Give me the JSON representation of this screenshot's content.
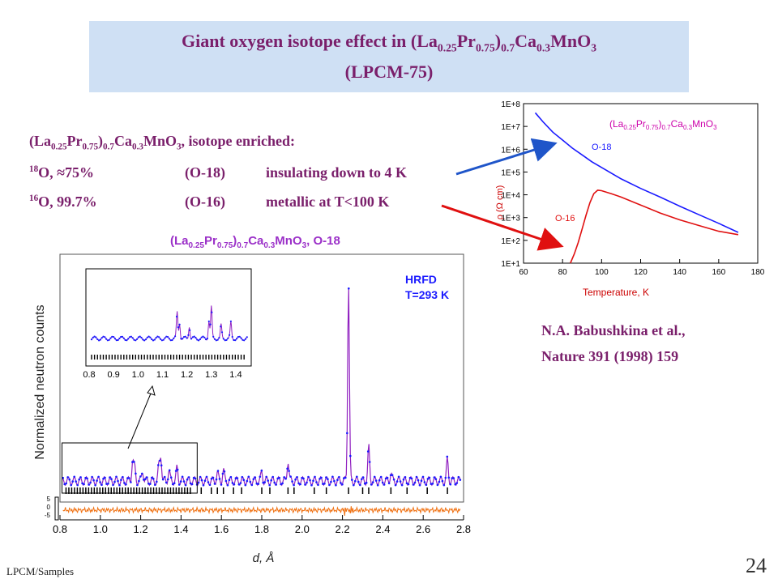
{
  "title": {
    "line1_prefix": "Giant oxygen isotope effect in (La",
    "line1_s1": "0.25",
    "line1_m1": "Pr",
    "line1_s2": "0.75",
    "line1_m2": ")",
    "line1_s3": "0.7",
    "line1_m3": "Ca",
    "line1_s4": "0.3",
    "line1_m4": "MnO",
    "line1_s5": "3",
    "line2": "(LPCM-75)"
  },
  "compound": {
    "p0": "(La",
    "s1": "0.25",
    "p1": "Pr",
    "s2": "0.75",
    "p2": ")",
    "s3": "0.7",
    "p3": "Ca",
    "s4": "0.3",
    "p4": "MnO",
    "s5": "3",
    "p5": ", isotope enriched:"
  },
  "isotopes": [
    {
      "mass": "18",
      "label": "O,  ≈75%",
      "code": "(O-18)",
      "state": "insulating down to 4 K"
    },
    {
      "mass": "16",
      "label": "O,  99.7%",
      "code": "(O-16)",
      "state": "metallic at T<100 K"
    }
  ],
  "reference": {
    "line1": "N.A. Babushkina et al.,",
    "line2": "Nature 391 (1998) 159"
  },
  "footer": "LPCM/Samples",
  "page_number": "24",
  "colors": {
    "title_text": "#7a1f6b",
    "title_bg": "#cfe0f4",
    "o18": "#1a1aff",
    "o16": "#e01010",
    "arrow_red": "#e01010",
    "arrow_blue": "#1f55c9",
    "fit": "#9020c0",
    "diff": "#f07010"
  },
  "chart_data": [
    {
      "type": "line",
      "title_parts": {
        "p0": "(La",
        "s1": "0.25",
        "p1": "Pr",
        "s2": "0.75",
        "p2": ")",
        "s3": "0.7",
        "p3": "Ca",
        "s4": "0.3",
        "p4": "MnO",
        "s5": "3"
      },
      "xlabel": "Temperature, K",
      "ylabel": "ρ (Ω cm)",
      "xlim": [
        60,
        180
      ],
      "x_ticks": [
        "60",
        "80",
        "100",
        "120",
        "140",
        "160",
        "180"
      ],
      "ylim_log10": [
        1,
        8
      ],
      "y_scale": "log",
      "y_ticks": [
        "1E+1",
        "1E+2",
        "1E+3",
        "1E+4",
        "1E+5",
        "1E+6",
        "1E+7",
        "1E+8"
      ],
      "series": [
        {
          "name": "O-18",
          "x": [
            66,
            70,
            75,
            80,
            85,
            90,
            95,
            100,
            110,
            120,
            130,
            140,
            150,
            160,
            170
          ],
          "log10_y": [
            7.6,
            7.2,
            6.75,
            6.4,
            6.05,
            5.75,
            5.45,
            5.2,
            4.7,
            4.28,
            3.9,
            3.5,
            3.12,
            2.75,
            2.35
          ]
        },
        {
          "name": "O-16",
          "x": [
            84,
            86,
            88,
            90,
            92,
            94,
            96,
            98,
            100,
            105,
            110,
            120,
            130,
            140,
            150,
            160,
            170
          ],
          "log10_y": [
            1.0,
            1.4,
            1.9,
            2.5,
            3.1,
            3.65,
            4.05,
            4.2,
            4.18,
            4.05,
            3.9,
            3.55,
            3.2,
            2.9,
            2.65,
            2.4,
            2.25
          ]
        }
      ]
    },
    {
      "type": "line",
      "title_parts": {
        "p0": "(La",
        "s1": "0.25",
        "p1": "Pr",
        "s2": "0.75",
        "p2": ")",
        "s3": "0.7",
        "p3": "Ca",
        "s4": "0.3",
        "p4": "MnO",
        "s5": "3",
        "p5": ",   O-18"
      },
      "annotation": [
        "HRFD",
        "T=293 K"
      ],
      "xlabel": "d, Å",
      "ylabel": "Normalized neutron counts",
      "xlim": [
        0.8,
        2.8
      ],
      "x_ticks": [
        "0.8",
        "1.0",
        "1.2",
        "1.4",
        "1.6",
        "1.8",
        "2.0",
        "2.2",
        "2.4",
        "2.6",
        "2.8"
      ],
      "diff_ticks": [
        "5",
        "0",
        "-5"
      ],
      "peaks": [
        {
          "d": 1.16,
          "h": 0.1
        },
        {
          "d": 1.17,
          "h": 0.06
        },
        {
          "d": 1.21,
          "h": 0.05
        },
        {
          "d": 1.29,
          "h": 0.07
        },
        {
          "d": 1.3,
          "h": 0.12
        },
        {
          "d": 1.34,
          "h": 0.05
        },
        {
          "d": 1.38,
          "h": 0.06
        },
        {
          "d": 1.58,
          "h": 0.04
        },
        {
          "d": 1.61,
          "h": 0.05
        },
        {
          "d": 1.8,
          "h": 0.04
        },
        {
          "d": 1.93,
          "h": 0.1
        },
        {
          "d": 2.23,
          "h": 0.95
        },
        {
          "d": 2.33,
          "h": 0.16
        },
        {
          "d": 2.44,
          "h": 0.04
        },
        {
          "d": 2.72,
          "h": 0.1
        }
      ],
      "inset": {
        "xlim": [
          0.8,
          1.45
        ],
        "x_ticks": [
          "0.8",
          "0.9",
          "1.0",
          "1.1",
          "1.2",
          "1.3",
          "1.4"
        ]
      }
    }
  ]
}
